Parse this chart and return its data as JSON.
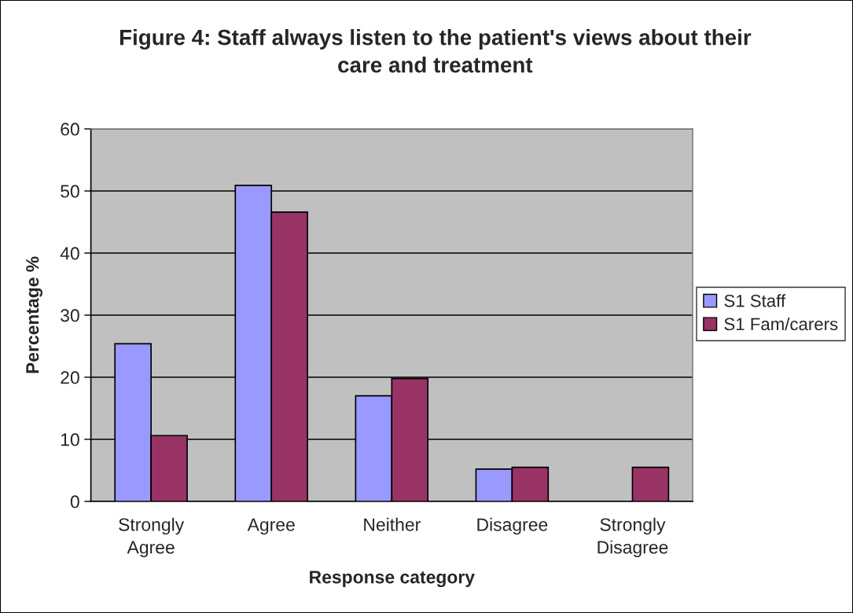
{
  "chart_data": {
    "type": "bar",
    "title": "Figure 4: Staff always listen to the patient's views about their\ncare and treatment",
    "xlabel": "Response category",
    "ylabel": "Percentage %",
    "categories": [
      "Strongly\nAgree",
      "Agree",
      "Neither",
      "Disagree",
      "Strongly\nDisagree"
    ],
    "series": [
      {
        "name": "S1 Staff",
        "color": "#9999ff",
        "values": [
          25.4,
          50.9,
          17.0,
          5.2,
          null
        ]
      },
      {
        "name": "S1 Fam/carers",
        "color": "#993366",
        "values": [
          10.6,
          46.6,
          19.8,
          5.5,
          5.5
        ]
      }
    ],
    "ylim": [
      0,
      60
    ],
    "yticks": [
      0,
      10,
      20,
      30,
      40,
      50,
      60
    ],
    "grid": "y",
    "legend": "right"
  }
}
